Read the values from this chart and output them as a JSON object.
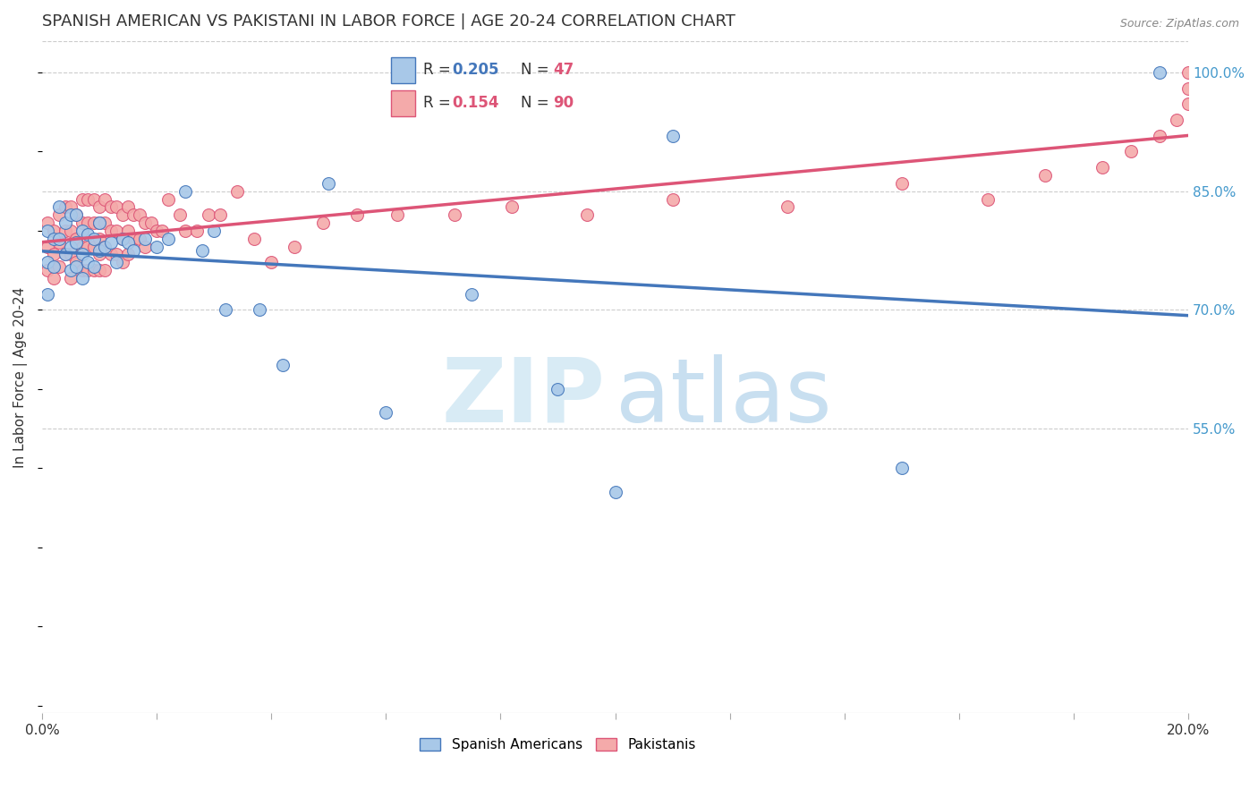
{
  "title": "SPANISH AMERICAN VS PAKISTANI IN LABOR FORCE | AGE 20-24 CORRELATION CHART",
  "source": "Source: ZipAtlas.com",
  "ylabel": "In Labor Force | Age 20-24",
  "xlim": [
    0.0,
    0.2
  ],
  "ylim": [
    0.19,
    1.04
  ],
  "xticks": [
    0.0,
    0.02,
    0.04,
    0.06,
    0.08,
    0.1,
    0.12,
    0.14,
    0.16,
    0.18,
    0.2
  ],
  "xticklabels": [
    "0.0%",
    "",
    "",
    "",
    "",
    "",
    "",
    "",
    "",
    "",
    "20.0%"
  ],
  "yticks_right": [
    0.55,
    0.7,
    0.85,
    1.0
  ],
  "ytick_right_labels": [
    "55.0%",
    "70.0%",
    "85.0%",
    "100.0%"
  ],
  "r_blue": 0.205,
  "n_blue": 47,
  "r_pink": 0.154,
  "n_pink": 90,
  "blue_color": "#A8C8E8",
  "pink_color": "#F4AAAA",
  "blue_line_color": "#4477BB",
  "pink_line_color": "#DD5577",
  "grid_color": "#CCCCCC",
  "background_color": "#FFFFFF",
  "title_fontsize": 13,
  "axis_label_fontsize": 11,
  "tick_fontsize": 11,
  "blue_scatter_x": [
    0.001,
    0.001,
    0.001,
    0.002,
    0.002,
    0.003,
    0.003,
    0.004,
    0.004,
    0.005,
    0.005,
    0.005,
    0.006,
    0.006,
    0.006,
    0.007,
    0.007,
    0.007,
    0.008,
    0.008,
    0.009,
    0.009,
    0.01,
    0.01,
    0.011,
    0.012,
    0.013,
    0.014,
    0.015,
    0.016,
    0.018,
    0.02,
    0.022,
    0.025,
    0.028,
    0.03,
    0.032,
    0.038,
    0.042,
    0.05,
    0.06,
    0.075,
    0.09,
    0.1,
    0.11,
    0.15,
    0.195
  ],
  "blue_scatter_y": [
    0.8,
    0.76,
    0.72,
    0.79,
    0.755,
    0.83,
    0.79,
    0.81,
    0.77,
    0.82,
    0.78,
    0.75,
    0.82,
    0.785,
    0.755,
    0.8,
    0.77,
    0.74,
    0.795,
    0.76,
    0.79,
    0.755,
    0.81,
    0.775,
    0.78,
    0.785,
    0.76,
    0.79,
    0.785,
    0.775,
    0.79,
    0.78,
    0.79,
    0.85,
    0.775,
    0.8,
    0.7,
    0.7,
    0.63,
    0.86,
    0.57,
    0.72,
    0.6,
    0.47,
    0.92,
    0.5,
    1.0
  ],
  "pink_scatter_x": [
    0.001,
    0.001,
    0.001,
    0.002,
    0.002,
    0.002,
    0.003,
    0.003,
    0.003,
    0.004,
    0.004,
    0.004,
    0.005,
    0.005,
    0.005,
    0.005,
    0.006,
    0.006,
    0.006,
    0.007,
    0.007,
    0.007,
    0.007,
    0.008,
    0.008,
    0.008,
    0.008,
    0.009,
    0.009,
    0.009,
    0.009,
    0.01,
    0.01,
    0.01,
    0.01,
    0.01,
    0.01,
    0.011,
    0.011,
    0.011,
    0.011,
    0.012,
    0.012,
    0.012,
    0.013,
    0.013,
    0.013,
    0.014,
    0.014,
    0.014,
    0.015,
    0.015,
    0.015,
    0.016,
    0.016,
    0.017,
    0.017,
    0.018,
    0.018,
    0.019,
    0.02,
    0.021,
    0.022,
    0.024,
    0.025,
    0.027,
    0.029,
    0.031,
    0.034,
    0.037,
    0.04,
    0.044,
    0.049,
    0.055,
    0.062,
    0.072,
    0.082,
    0.095,
    0.11,
    0.13,
    0.15,
    0.165,
    0.175,
    0.185,
    0.19,
    0.195,
    0.198,
    0.2,
    0.2,
    0.2
  ],
  "pink_scatter_y": [
    0.81,
    0.78,
    0.75,
    0.8,
    0.77,
    0.74,
    0.82,
    0.785,
    0.755,
    0.83,
    0.8,
    0.77,
    0.83,
    0.8,
    0.77,
    0.74,
    0.82,
    0.79,
    0.76,
    0.84,
    0.81,
    0.78,
    0.75,
    0.84,
    0.81,
    0.78,
    0.75,
    0.84,
    0.81,
    0.78,
    0.75,
    0.83,
    0.81,
    0.79,
    0.77,
    0.75,
    0.81,
    0.84,
    0.81,
    0.78,
    0.75,
    0.83,
    0.8,
    0.77,
    0.83,
    0.8,
    0.77,
    0.82,
    0.79,
    0.76,
    0.83,
    0.8,
    0.77,
    0.82,
    0.79,
    0.82,
    0.79,
    0.81,
    0.78,
    0.81,
    0.8,
    0.8,
    0.84,
    0.82,
    0.8,
    0.8,
    0.82,
    0.82,
    0.85,
    0.79,
    0.76,
    0.78,
    0.81,
    0.82,
    0.82,
    0.82,
    0.83,
    0.82,
    0.84,
    0.83,
    0.86,
    0.84,
    0.87,
    0.88,
    0.9,
    0.92,
    0.94,
    0.96,
    0.98,
    1.0
  ]
}
